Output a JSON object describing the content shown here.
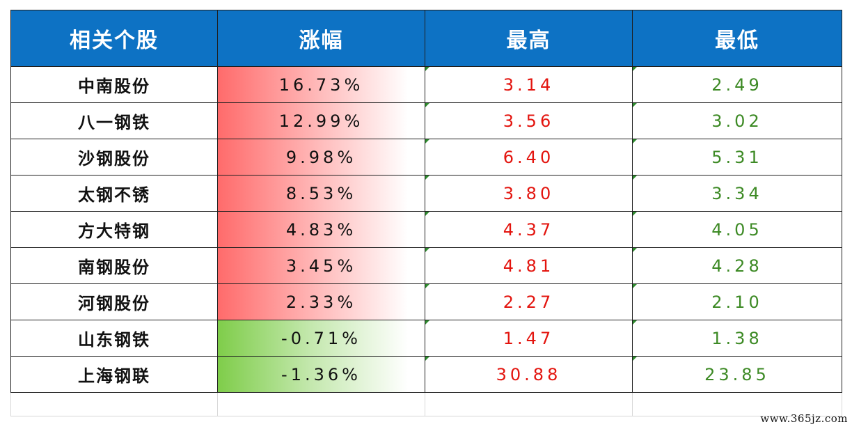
{
  "table": {
    "headers": [
      "相关个股",
      "涨幅",
      "最高",
      "最低"
    ],
    "rows": [
      {
        "name": "中南股份",
        "change": "16.73%",
        "high": "3.14",
        "low": "2.49",
        "change_value": 16.73
      },
      {
        "name": "八一钢铁",
        "change": "12.99%",
        "high": "3.56",
        "low": "3.02",
        "change_value": 12.99
      },
      {
        "name": "沙钢股份",
        "change": "9.98%",
        "high": "6.40",
        "low": "5.31",
        "change_value": 9.98
      },
      {
        "name": "太钢不锈",
        "change": "8.53%",
        "high": "3.80",
        "low": "3.34",
        "change_value": 8.53
      },
      {
        "name": "方大特钢",
        "change": "4.83%",
        "high": "4.37",
        "low": "4.05",
        "change_value": 4.83
      },
      {
        "name": "南钢股份",
        "change": "3.45%",
        "high": "4.81",
        "low": "4.28",
        "change_value": 3.45
      },
      {
        "name": "河钢股份",
        "change": "2.33%",
        "high": "2.27",
        "low": "2.10",
        "change_value": 2.33
      },
      {
        "name": "山东钢铁",
        "change": "-0.71%",
        "high": "1.47",
        "low": "1.38",
        "change_value": -0.71
      },
      {
        "name": "上海钢联",
        "change": "-1.36%",
        "high": "30.88",
        "low": "23.85",
        "change_value": -1.36
      }
    ]
  },
  "colors": {
    "header_bg": "#0d72c4",
    "header_text": "#ffffff",
    "positive_fill": "#ff6b6b",
    "negative_fill": "#7fcd4a",
    "high_text": "#e3140e",
    "low_text": "#3d8a25"
  },
  "watermark": "www.365jz.com"
}
